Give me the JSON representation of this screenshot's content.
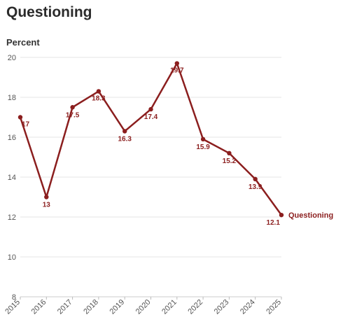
{
  "title": "Questioning",
  "chart_data": {
    "type": "line",
    "title": "Questioning",
    "xlabel": "",
    "ylabel": "Percent",
    "x": [
      2015,
      2016,
      2017,
      2018,
      2019,
      2020,
      2021,
      2022,
      2023,
      2024,
      2025
    ],
    "xticks": [
      "2015",
      "2016",
      "2017",
      "2018",
      "2019",
      "2020",
      "2021",
      "2022",
      "2023",
      "2024",
      "2025"
    ],
    "yticks": [
      "8",
      "10",
      "12",
      "14",
      "16",
      "18",
      "20"
    ],
    "ylim": [
      8,
      20
    ],
    "grid": true,
    "series": [
      {
        "name": "Questioning",
        "values": [
          17,
          13,
          17.5,
          18.3,
          16.3,
          17.4,
          19.7,
          15.9,
          15.2,
          13.9,
          12.1
        ],
        "labels": [
          "17",
          "13",
          "17.5",
          "18.3",
          "16.3",
          "17.4",
          "19.7",
          "15.9",
          "15.2",
          "13.9",
          "12.1"
        ],
        "color": "#8b1e1e"
      }
    ]
  }
}
